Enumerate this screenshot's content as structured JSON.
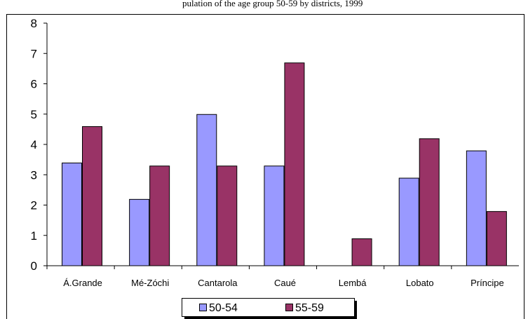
{
  "header": {
    "caption_fragment": "pulation of the age group 50-59 by districts, 1999"
  },
  "chart_data": {
    "type": "bar",
    "title": "",
    "xlabel": "",
    "ylabel": "",
    "categories": [
      "Á.Grande",
      "Mé-Zóchi",
      "Cantarola",
      "Caué",
      "Lembá",
      "Lobato",
      "Príncipe"
    ],
    "series": [
      {
        "name": "50-54",
        "color": "#9999ff",
        "values": [
          3.4,
          2.2,
          5.0,
          3.3,
          0,
          2.9,
          3.8
        ]
      },
      {
        "name": "55-59",
        "color": "#993366",
        "values": [
          4.6,
          3.3,
          3.3,
          6.7,
          0.9,
          4.2,
          1.8
        ]
      }
    ],
    "ylim": [
      0,
      8
    ],
    "yticks": [
      "0",
      "1",
      "2",
      "3",
      "4",
      "5",
      "6",
      "7",
      "8"
    ],
    "grid": false,
    "legend_position": "bottom"
  }
}
